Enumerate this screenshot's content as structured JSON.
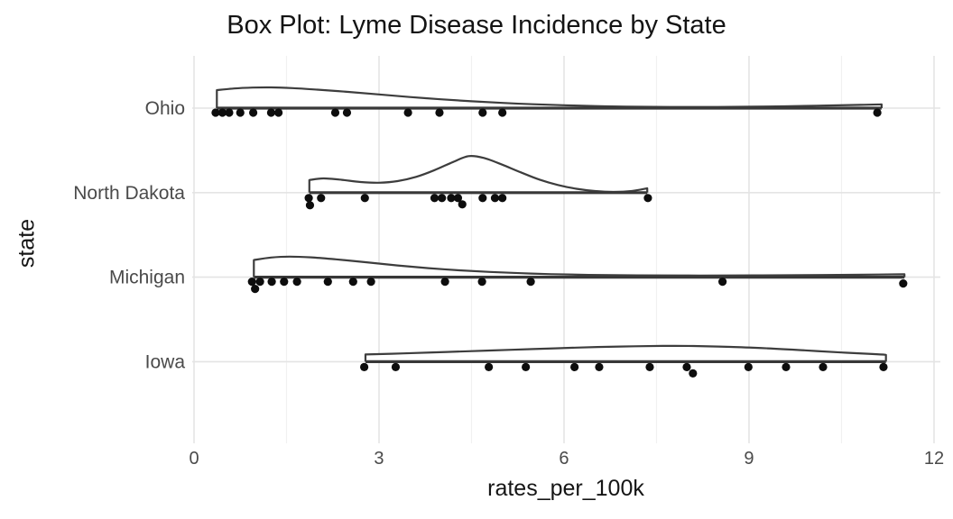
{
  "chart_data": {
    "type": "area",
    "variant": "ridgeline-density-curves-with-jittered-points",
    "title": "Box Plot: Lyme Disease Incidence by State",
    "xlabel": "rates_per_100k",
    "ylabel": "state",
    "x_ticks": [
      0,
      3,
      6,
      9,
      12
    ],
    "x_minor_gridlines": [
      1.5,
      4.5,
      7.5,
      10.5
    ],
    "xlim": [
      -0.05,
      12.1
    ],
    "grid": "major and minor vertical gridlines, major horizontal gridline per category",
    "legend_position": "none",
    "categories_top_to_bottom": [
      "Ohio",
      "North Dakota",
      "Michigan",
      "Iowa"
    ],
    "series": [
      {
        "state": "Ohio",
        "points": [
          [
            0.35,
            5
          ],
          [
            0.46,
            5
          ],
          [
            0.57,
            5
          ],
          [
            0.75,
            5
          ],
          [
            0.96,
            5
          ],
          [
            1.25,
            5
          ],
          [
            1.37,
            5
          ],
          [
            2.29,
            5
          ],
          [
            2.48,
            5
          ],
          [
            3.47,
            5
          ],
          [
            3.98,
            5
          ],
          [
            4.68,
            5
          ],
          [
            5.0,
            5
          ],
          [
            11.08,
            5
          ]
        ],
        "density_outline": [
          [
            0.37,
            0
          ],
          [
            0.37,
            20
          ],
          [
            0.65,
            21.8
          ],
          [
            0.95,
            22.8
          ],
          [
            1.25,
            23
          ],
          [
            1.6,
            22.2
          ],
          [
            2.0,
            20.5
          ],
          [
            2.5,
            18
          ],
          [
            3.0,
            15.2
          ],
          [
            3.5,
            12.3
          ],
          [
            4.0,
            9.8
          ],
          [
            4.5,
            7.6
          ],
          [
            5.0,
            5.8
          ],
          [
            5.5,
            4.3
          ],
          [
            6.0,
            3.2
          ],
          [
            6.5,
            2.3
          ],
          [
            7.0,
            1.7
          ],
          [
            7.7,
            1.3
          ],
          [
            8.5,
            1.3
          ],
          [
            9.3,
            1.8
          ],
          [
            10.1,
            2.7
          ],
          [
            10.8,
            3.6
          ],
          [
            11.15,
            4.2
          ],
          [
            11.15,
            0
          ]
        ]
      },
      {
        "state": "North Dakota",
        "points": [
          [
            1.86,
            6
          ],
          [
            1.88,
            14
          ],
          [
            2.06,
            6
          ],
          [
            2.77,
            6
          ],
          [
            3.9,
            6
          ],
          [
            4.02,
            6
          ],
          [
            4.17,
            6
          ],
          [
            4.28,
            6
          ],
          [
            4.35,
            13
          ],
          [
            4.68,
            6
          ],
          [
            4.88,
            6
          ],
          [
            5.0,
            6
          ],
          [
            7.36,
            6
          ]
        ],
        "density_outline": [
          [
            1.87,
            0
          ],
          [
            1.87,
            14
          ],
          [
            2.1,
            15.8
          ],
          [
            2.4,
            14.2
          ],
          [
            2.7,
            11.8
          ],
          [
            3.0,
            11
          ],
          [
            3.3,
            12.8
          ],
          [
            3.6,
            17.5
          ],
          [
            3.9,
            25
          ],
          [
            4.2,
            34
          ],
          [
            4.45,
            40.5
          ],
          [
            4.7,
            38.5
          ],
          [
            5.0,
            31
          ],
          [
            5.3,
            22.5
          ],
          [
            5.6,
            14.5
          ],
          [
            5.9,
            8.5
          ],
          [
            6.2,
            4.3
          ],
          [
            6.5,
            1.8
          ],
          [
            6.8,
            0.8
          ],
          [
            7.1,
            1.8
          ],
          [
            7.35,
            4.8
          ],
          [
            7.35,
            0
          ]
        ]
      },
      {
        "state": "Michigan",
        "points": [
          [
            0.94,
            5
          ],
          [
            0.99,
            13
          ],
          [
            1.07,
            5
          ],
          [
            1.26,
            5
          ],
          [
            1.46,
            5
          ],
          [
            1.67,
            5
          ],
          [
            2.17,
            5
          ],
          [
            2.58,
            5
          ],
          [
            2.87,
            5
          ],
          [
            4.07,
            5
          ],
          [
            4.67,
            5
          ],
          [
            5.46,
            5
          ],
          [
            8.57,
            5
          ],
          [
            11.5,
            7
          ]
        ],
        "density_outline": [
          [
            0.97,
            0
          ],
          [
            0.97,
            19
          ],
          [
            1.25,
            21.8
          ],
          [
            1.55,
            22.8
          ],
          [
            1.9,
            22
          ],
          [
            2.3,
            19.8
          ],
          [
            2.8,
            16.5
          ],
          [
            3.3,
            13
          ],
          [
            3.8,
            10
          ],
          [
            4.3,
            7.6
          ],
          [
            4.8,
            5.8
          ],
          [
            5.3,
            4.4
          ],
          [
            5.8,
            3.3
          ],
          [
            6.4,
            2.5
          ],
          [
            7.2,
            2
          ],
          [
            8.2,
            1.8
          ],
          [
            9.2,
            2
          ],
          [
            10.2,
            2.4
          ],
          [
            11.1,
            2.9
          ],
          [
            11.52,
            3.2
          ],
          [
            11.52,
            0
          ]
        ]
      },
      {
        "state": "Iowa",
        "points": [
          [
            2.76,
            6
          ],
          [
            3.27,
            6
          ],
          [
            4.78,
            6
          ],
          [
            5.38,
            6
          ],
          [
            6.17,
            6
          ],
          [
            6.57,
            6
          ],
          [
            7.39,
            6
          ],
          [
            7.99,
            6
          ],
          [
            8.09,
            13
          ],
          [
            8.99,
            6
          ],
          [
            9.6,
            6
          ],
          [
            10.2,
            6
          ],
          [
            11.18,
            6
          ]
        ],
        "density_outline": [
          [
            2.78,
            0
          ],
          [
            2.78,
            8
          ],
          [
            3.4,
            9.2
          ],
          [
            4.1,
            10.8
          ],
          [
            4.8,
            12.4
          ],
          [
            5.5,
            14
          ],
          [
            6.2,
            15.6
          ],
          [
            6.9,
            16.8
          ],
          [
            7.6,
            17.5
          ],
          [
            8.1,
            17.4
          ],
          [
            8.7,
            16.4
          ],
          [
            9.3,
            14.8
          ],
          [
            9.9,
            12.6
          ],
          [
            10.5,
            10.2
          ],
          [
            11.0,
            8.5
          ],
          [
            11.22,
            7.6
          ],
          [
            11.22,
            0
          ]
        ]
      }
    ],
    "colors": {
      "background": "#ffffff",
      "curve_stroke": "#3d3d3d",
      "baseline_stroke": "#383838",
      "curve_fill": "#ffffff",
      "point_fill": "#0d0d0d",
      "grid_major": "#e4e4e4",
      "grid_minor": "#f1f1f1",
      "axis_tick_text": "#4a4a4a",
      "title_text": "#141414"
    }
  }
}
